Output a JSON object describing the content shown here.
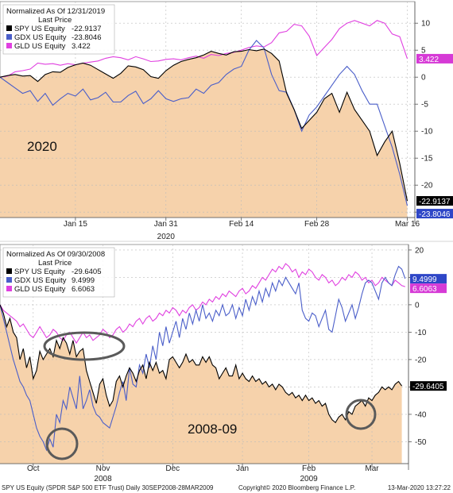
{
  "chart_data": [
    {
      "type": "line",
      "legend_title": "Normalized As Of 12/31/2019",
      "legend_subtitle": "Last Price",
      "legend_placement": "top-left",
      "annotation": "2020",
      "x_tick_labels": [
        "Jan 15",
        "Jan 31",
        "Feb 14",
        "Feb 28",
        "Mar 16"
      ],
      "x_tick_pos": [
        10,
        22,
        32,
        42,
        54
      ],
      "xlim": [
        0,
        55
      ],
      "x_year_label": "2020",
      "ylim": [
        -26,
        14
      ],
      "y_ticks": [
        10,
        5,
        0,
        -5,
        -10,
        -15,
        -20,
        -25
      ],
      "grid": true,
      "area_series": "SPY US Equity",
      "series": [
        {
          "name": "SPY US Equity",
          "last": -22.9137,
          "last_label": "-22.9137",
          "legend_value": "-22.9137",
          "color": "#000000",
          "values": [
            0,
            0.3,
            0.5,
            0.2,
            0.3,
            -0.8,
            0.5,
            1.0,
            0.9,
            1.8,
            2.3,
            2.6,
            2.2,
            1.4,
            0.6,
            -0.2,
            0.7,
            2.1,
            1.9,
            1.4,
            0.1,
            -0.2,
            1.2,
            2.2,
            2.9,
            3.3,
            3.6,
            4.1,
            4.8,
            4.4,
            4.1,
            4.7,
            4.8,
            5.1,
            4.9,
            5.2,
            4.4,
            3.0,
            -3.0,
            -6.0,
            -9.5,
            -8.0,
            -6.5,
            -4.0,
            -3.0,
            -6.5,
            -2.8,
            -6.0,
            -8.0,
            -10.0,
            -14.5,
            -12.0,
            -10.0,
            -16.0,
            -22.9137
          ]
        },
        {
          "name": "GDX US Equity",
          "last": -23.8046,
          "last_label": "-23.8046",
          "legend_value": "-23.8046",
          "color": "#4a5ec9",
          "values": [
            0,
            -1.0,
            -2.0,
            -3.0,
            -2.5,
            -4.5,
            -3.0,
            -5.2,
            -4.0,
            -3.0,
            -3.5,
            -2.2,
            -4.2,
            -3.8,
            -2.8,
            -4.6,
            -4.6,
            -3.4,
            -2.6,
            -4.9,
            -4.0,
            -2.5,
            -4.0,
            -4.5,
            -4.0,
            -3.8,
            -2.2,
            -3.0,
            -1.5,
            -1.0,
            0.5,
            1.5,
            2.0,
            5.0,
            6.8,
            5.4,
            0.5,
            -2.5,
            -2.8,
            -6.0,
            -10.0,
            -7.0,
            -5.5,
            -3.5,
            -1.5,
            0.5,
            2.0,
            0.5,
            -2.5,
            -5.0,
            -5.0,
            -9.0,
            -13.0,
            -18.0,
            -23.8046
          ]
        },
        {
          "name": "GLD US Equity",
          "last": 3.422,
          "last_label": "3.422",
          "legend_value": "3.422",
          "color": "#e040e0",
          "values": [
            0,
            0.2,
            1.0,
            1.2,
            1.5,
            2.6,
            2.4,
            2.5,
            2.2,
            2.5,
            2.3,
            2.6,
            2.8,
            3.0,
            3.5,
            3.8,
            3.6,
            3.2,
            3.8,
            3.4,
            2.9,
            3.0,
            3.3,
            3.4,
            3.2,
            3.6,
            3.9,
            3.5,
            4.2,
            4.0,
            4.4,
            4.6,
            5.0,
            5.5,
            5.8,
            5.6,
            6.4,
            8.2,
            8.5,
            9.8,
            9.5,
            7.6,
            4.0,
            5.5,
            7.0,
            9.0,
            10.0,
            10.5,
            10.0,
            9.5,
            10.5,
            10.0,
            8.0,
            7.5,
            3.422
          ]
        }
      ]
    },
    {
      "type": "line",
      "legend_title": "Normalized As Of 09/30/2008",
      "legend_subtitle": "Last Price",
      "legend_placement": "top-left",
      "annotation": "2008-09",
      "x_tick_labels": [
        "Oct",
        "Nov",
        "Dec",
        "Jan",
        "Feb",
        "Mar"
      ],
      "x_tick_pos": [
        10,
        31,
        52,
        73,
        93,
        112
      ],
      "xlim": [
        0,
        123
      ],
      "x_year_labels": [
        {
          "label": "2008",
          "pos": 31
        },
        {
          "label": "2009",
          "pos": 93
        }
      ],
      "ylim": [
        -58,
        22
      ],
      "y_ticks": [
        20,
        10,
        0,
        -10,
        -20,
        -30,
        -40,
        -50
      ],
      "grid": true,
      "area_series": "SPY US Equity",
      "series": [
        {
          "name": "SPY US Equity",
          "last": -29.6405,
          "last_label": "-29.6405",
          "legend_value": "-29.6405",
          "color": "#000000",
          "values": [
            0,
            -3,
            -8,
            -5,
            -10,
            -12,
            -20,
            -16,
            -23,
            -19,
            -27,
            -24,
            -17,
            -20,
            -18,
            -16,
            -19,
            -13,
            -16,
            -12,
            -14,
            -18,
            -13,
            -19,
            -17,
            -16,
            -24,
            -28,
            -32,
            -36,
            -29,
            -27,
            -33,
            -37,
            -35,
            -28,
            -26,
            -30,
            -26,
            -23,
            -25,
            -28,
            -24,
            -22,
            -27,
            -21,
            -24,
            -21,
            -25,
            -24,
            -27,
            -20,
            -19,
            -21,
            -23,
            -21,
            -18,
            -21,
            -20,
            -22,
            -22,
            -19,
            -21,
            -19,
            -22,
            -23,
            -27,
            -25,
            -23,
            -26,
            -26,
            -22,
            -27,
            -25,
            -27,
            -28,
            -26,
            -28,
            -27,
            -29,
            -28,
            -30,
            -29,
            -31,
            -29,
            -30,
            -32,
            -33,
            -32,
            -34,
            -33,
            -35,
            -33,
            -35,
            -34,
            -36,
            -35,
            -37,
            -36,
            -40,
            -42,
            -43,
            -41,
            -40,
            -42,
            -39,
            -40,
            -37,
            -36,
            -35,
            -37,
            -34,
            -35,
            -33,
            -32,
            -30,
            -31,
            -30,
            -31,
            -29,
            -28,
            -29.6405
          ]
        },
        {
          "name": "GDX US Equity",
          "last": 9.4999,
          "last_label": "9.4999",
          "legend_value": "9.4999",
          "color": "#4a5ec9",
          "values": [
            0,
            -5,
            -10,
            -15,
            -20,
            -24,
            -28,
            -30,
            -33,
            -35,
            -40,
            -45,
            -48,
            -50,
            -53,
            -49,
            -52,
            -40,
            -43,
            -35,
            -38,
            -30,
            -34,
            -38,
            -26,
            -38,
            -35,
            -31,
            -37,
            -40,
            -41,
            -43,
            -44,
            -45,
            -41,
            -37,
            -32,
            -28,
            -35,
            -23,
            -29,
            -30,
            -22,
            -25,
            -18,
            -23,
            -15,
            -20,
            -10,
            -15,
            -8,
            -14,
            -10,
            -6,
            -12,
            -5,
            -9,
            -3,
            -7,
            -2,
            -6,
            0,
            -5,
            -3,
            -6,
            -2,
            -4,
            0,
            -4,
            -3,
            0,
            -5,
            -1,
            -4,
            2,
            -2,
            3,
            0,
            5,
            1,
            6,
            3,
            8,
            5,
            9,
            7,
            10,
            8,
            6,
            4,
            8,
            -2,
            -5,
            -6,
            -3,
            -4,
            -8,
            -5,
            -2,
            -9,
            -10,
            -4,
            2,
            -1,
            -6,
            -3,
            0,
            -5,
            -1,
            4,
            8,
            9,
            8,
            5,
            2,
            8,
            10,
            8,
            7,
            11,
            14,
            13,
            9.4999
          ]
        },
        {
          "name": "GLD US Equity",
          "last": 6.6063,
          "last_label": "6.6063",
          "legend_value": "6.6063",
          "color": "#e040e0",
          "values": [
            0,
            -2,
            -3,
            -4,
            -5,
            -6,
            -8,
            -7,
            -9,
            -11,
            -12,
            -10,
            -8,
            -10,
            -12,
            -11,
            -9,
            -10,
            -12,
            -13,
            -11,
            -10,
            -12,
            -14,
            -12,
            -10,
            -12,
            -11,
            -13,
            -12,
            -11,
            -9,
            -10,
            -12,
            -11,
            -9,
            -8,
            -10,
            -9,
            -7,
            -8,
            -6,
            -5,
            -7,
            -5,
            -4,
            -6,
            -5,
            -3,
            -4,
            -2,
            -3,
            -1,
            -2,
            -4,
            -2,
            -3,
            -1,
            0,
            -2,
            -1,
            1,
            0,
            2,
            1,
            3,
            2,
            4,
            3,
            5,
            4,
            3,
            5,
            6,
            4,
            5,
            7,
            6,
            8,
            10,
            9,
            11,
            13,
            12,
            14,
            13,
            15,
            14,
            12,
            13,
            10,
            12,
            11,
            13,
            12,
            10,
            9,
            11,
            10,
            8,
            9,
            7,
            8,
            10,
            9,
            11,
            10,
            12,
            11,
            9,
            10,
            8,
            9,
            7,
            8,
            10,
            9,
            8,
            7,
            9,
            8,
            7,
            6.6063
          ]
        }
      ]
    }
  ],
  "overlays": {
    "circles_color": "#5a5a5a"
  },
  "footer": {
    "left": "SPY US Equity (SPDR S&P 500 ETF Trust)  Daily 30SEP2008-28MAR2009",
    "center": "Copyright© 2020 Bloomberg Finance L.P.",
    "right": "13-Mar-2020 13:27:22"
  },
  "colors": {
    "area_fill": "#f6d2ab",
    "tag_black": "#000000",
    "tag_blue": "#2e46c7",
    "tag_magenta": "#d63ad6",
    "grid": "#bbbbbb"
  }
}
